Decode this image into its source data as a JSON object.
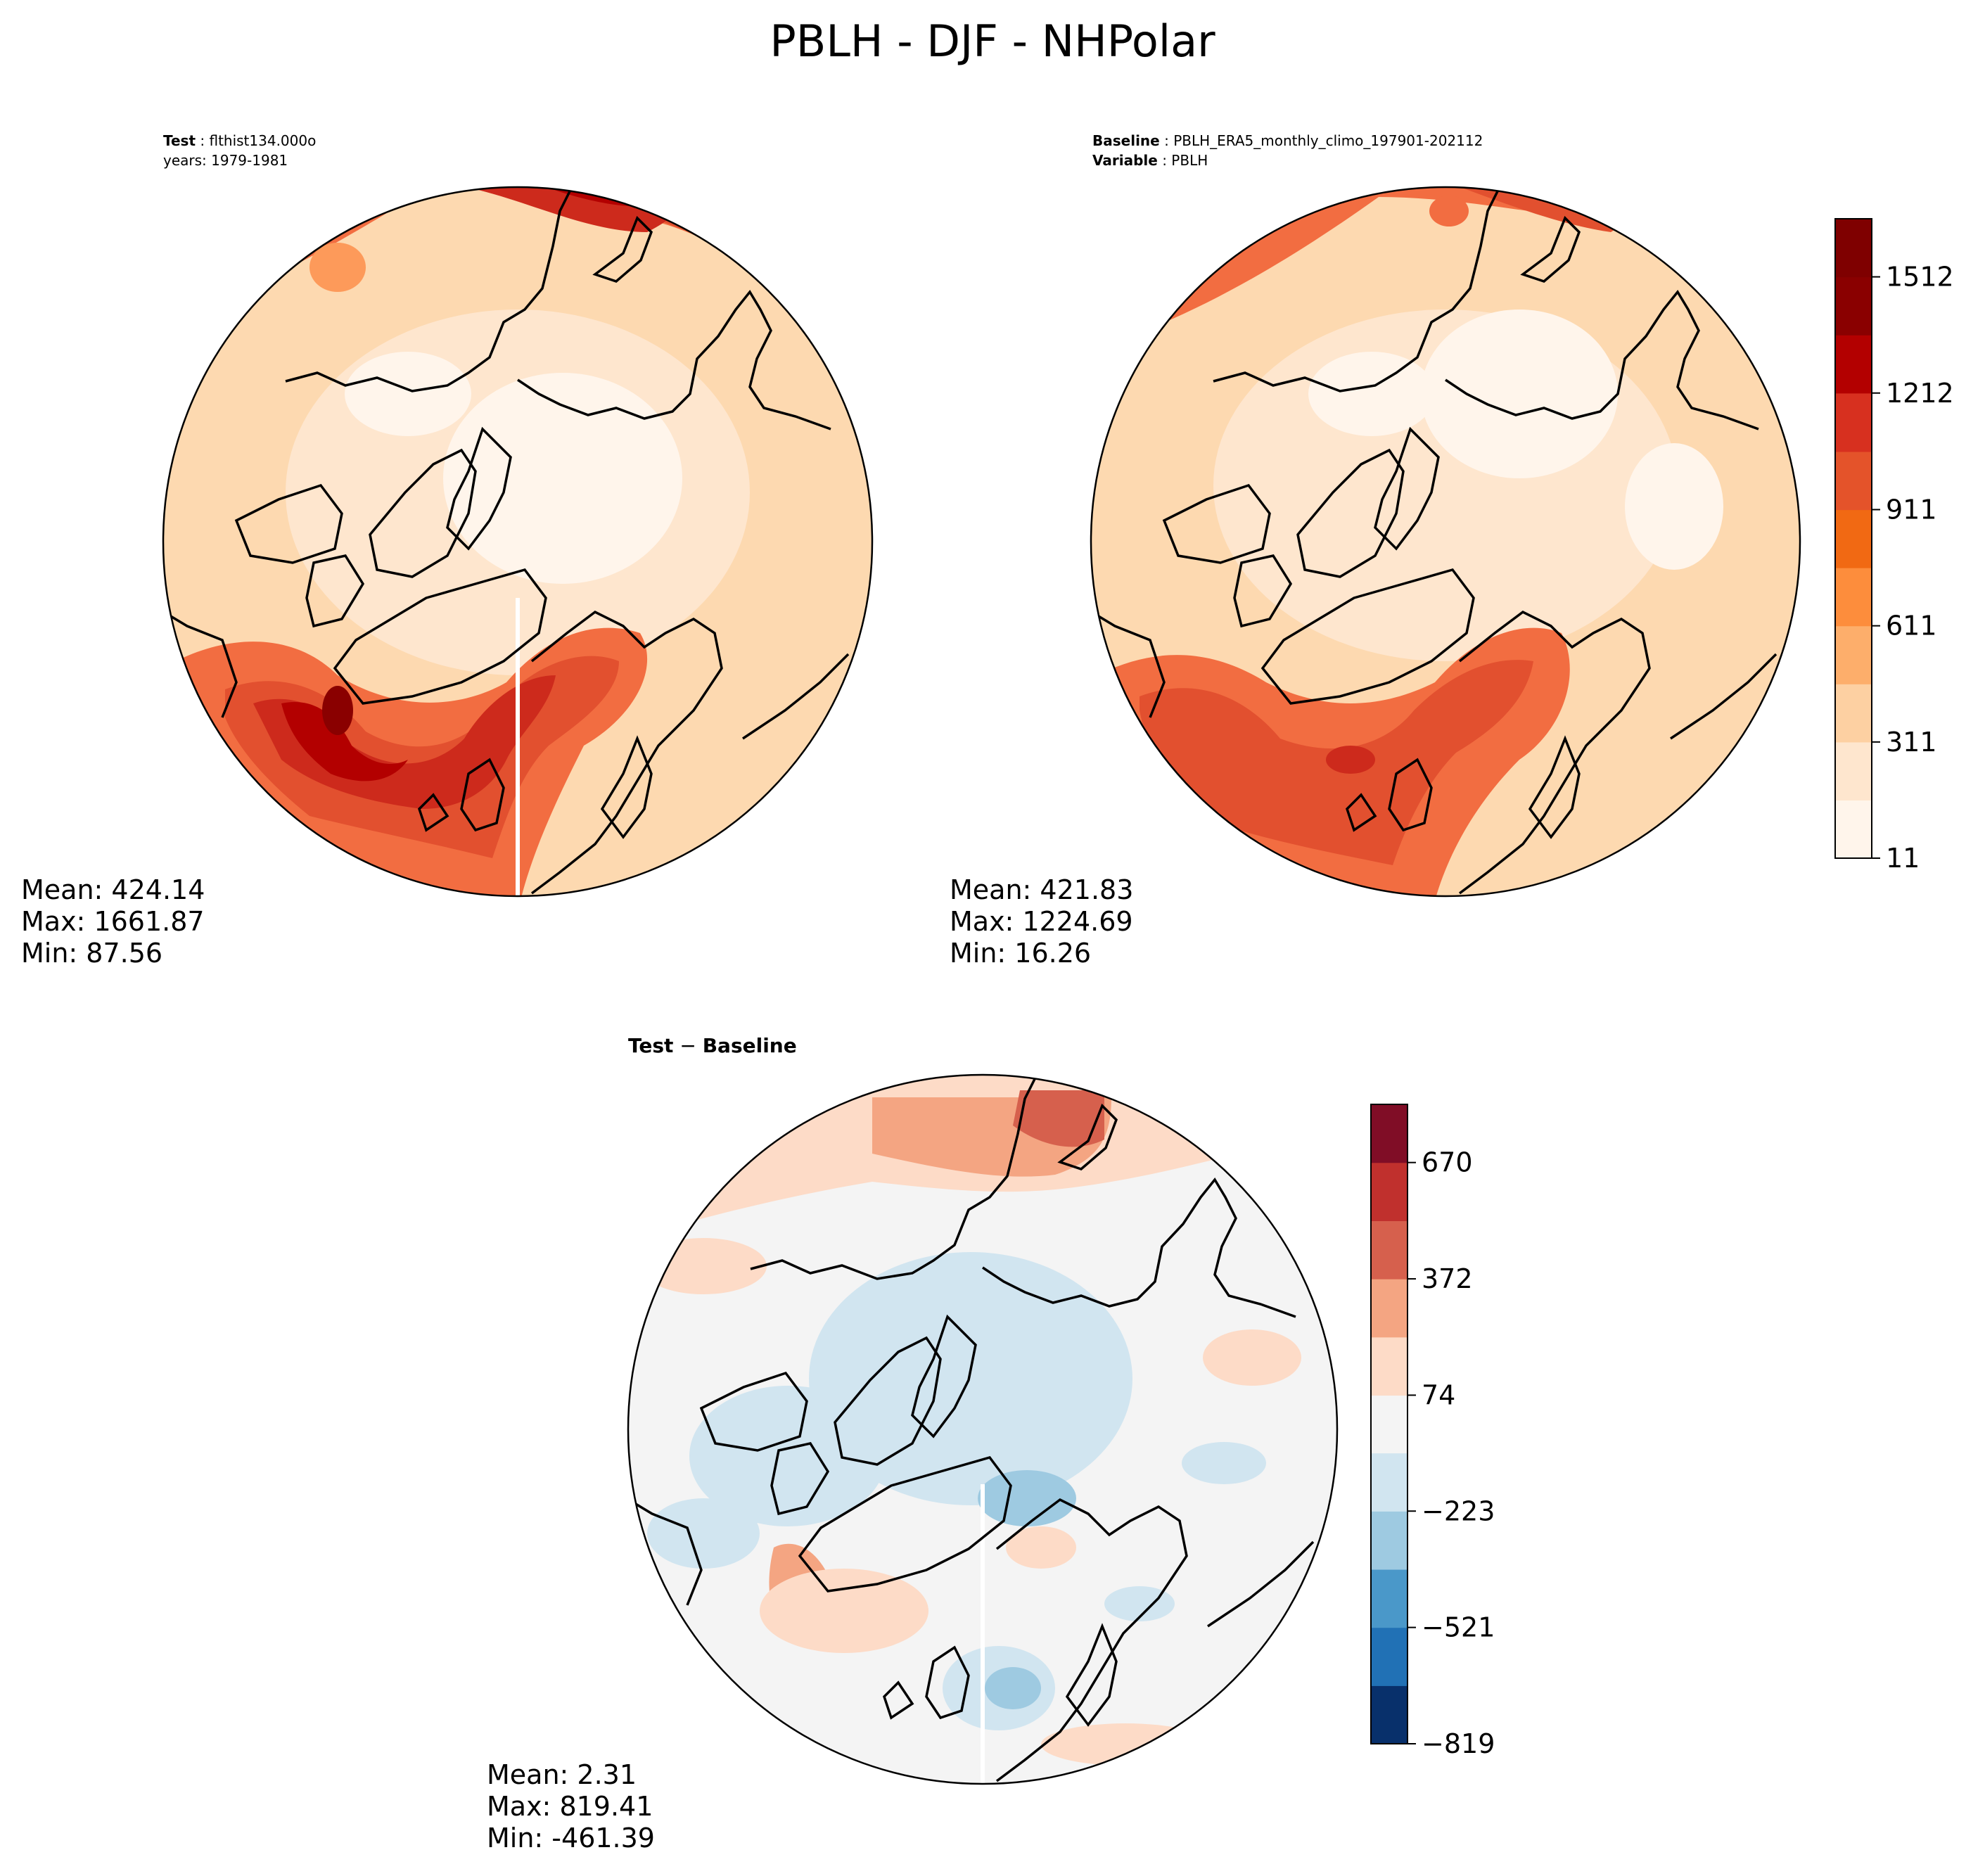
{
  "figure": {
    "suptitle": "PBLH - DJF - NHPolar"
  },
  "panels": {
    "test": {
      "key": "Test",
      "name": "flthist134.000o",
      "years": "years: 1979-1981",
      "stats": {
        "mean": "Mean: 424.14",
        "max": "Max: 1661.87",
        "min": "Min: 87.56"
      }
    },
    "baseline": {
      "key": "Baseline",
      "name": "PBLH_ERA5_monthly_climo_197901-202112",
      "variable_key": "Variable",
      "variable": "PBLH",
      "stats": {
        "mean": "Mean: 421.83",
        "max": "Max: 1224.69",
        "min": "Min: 16.26"
      }
    },
    "diff": {
      "title_a": "Test",
      "title_op": "−",
      "title_b": "Baseline",
      "stats": {
        "mean": "Mean:  2.31",
        "max": "Max: 819.41",
        "min": "Min: -461.39"
      }
    }
  },
  "chart_data": [
    {
      "type": "heatmap",
      "projection": "north-polar-stereographic",
      "panel": "Test",
      "variable": "PBLH",
      "season": "DJF",
      "region": "NHPolar",
      "levels": [
        11,
        161,
        311,
        461,
        611,
        761,
        911,
        1061,
        1212,
        1362,
        1512,
        1662
      ],
      "colorbar_ticks": [
        "11",
        "311",
        "611",
        "911",
        "1212",
        "1512"
      ],
      "colors": [
        "#fff5eb",
        "#fee6ce",
        "#fdd0a2",
        "#fdae6b",
        "#fd8d3c",
        "#f16913",
        "#e4532a",
        "#d7301f",
        "#b30000",
        "#8a0000",
        "#7f0000"
      ],
      "stats": {
        "mean": 424.14,
        "max": 1661.87,
        "min": 87.56
      }
    },
    {
      "type": "heatmap",
      "projection": "north-polar-stereographic",
      "panel": "Baseline",
      "variable": "PBLH",
      "season": "DJF",
      "region": "NHPolar",
      "levels": [
        11,
        161,
        311,
        461,
        611,
        761,
        911,
        1061,
        1212,
        1362,
        1512,
        1662
      ],
      "colorbar_ticks": [
        "11",
        "311",
        "611",
        "911",
        "1212",
        "1512"
      ],
      "stats": {
        "mean": 421.83,
        "max": 1224.69,
        "min": 16.26
      }
    },
    {
      "type": "heatmap",
      "projection": "north-polar-stereographic",
      "panel": "Test − Baseline",
      "levels": [
        -819,
        -670,
        -521,
        -372,
        -223,
        -74,
        74,
        223,
        372,
        521,
        670,
        819
      ],
      "colorbar_ticks": [
        "−819",
        "−521",
        "−223",
        "74",
        "372",
        "670"
      ],
      "colors": [
        "#08306b",
        "#2171b5",
        "#4a98c9",
        "#9ecae1",
        "#d1e5f0",
        "#f4f4f4",
        "#fddbc7",
        "#f4a582",
        "#d6604d",
        "#c0302d",
        "#800d26"
      ],
      "stats": {
        "mean": 2.31,
        "max": 819.41,
        "min": -461.39
      }
    }
  ]
}
